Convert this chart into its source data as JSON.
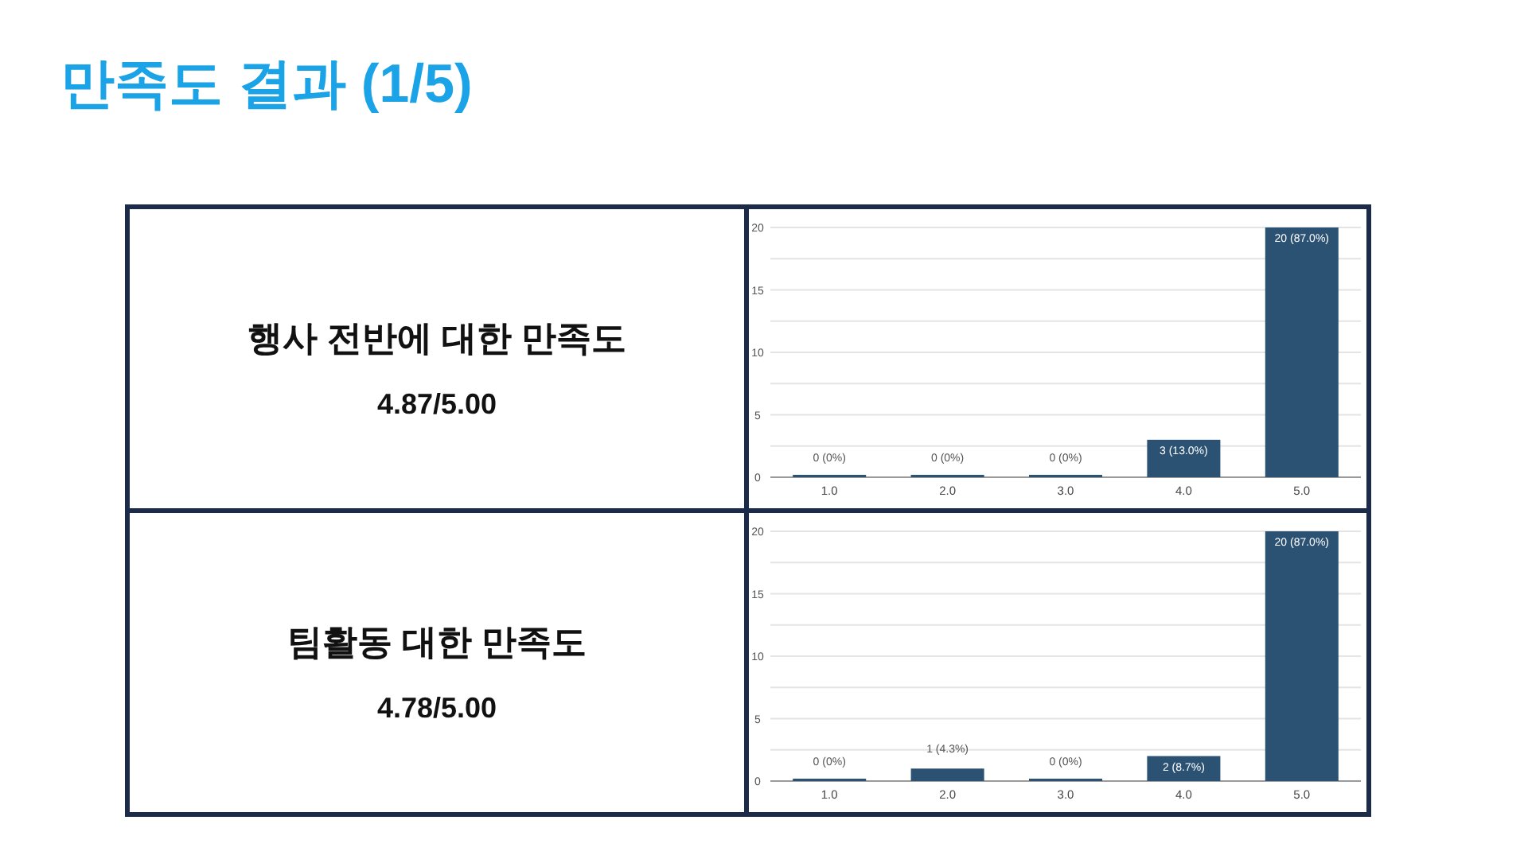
{
  "chart_data": [
    {
      "type": "other",
      "title": "만족도 결과 (1/5)"
    },
    {
      "type": "other",
      "title": "행사 전반에 대한 만족도",
      "subtitle": "4.87/5.00"
    },
    {
      "type": "bar",
      "categories": [
        "1.0",
        "2.0",
        "3.0",
        "4.0",
        "5.0"
      ],
      "values": [
        0,
        0,
        0,
        3,
        20
      ],
      "value_labels": [
        "0 (0%)",
        "0 (0%)",
        "0 (0%)",
        "3 (13.0%)",
        "20 (87.0%)"
      ],
      "color": "#2b5273",
      "ylim": [
        0,
        20
      ],
      "yticks": [
        0,
        {
          "value": 2.5,
          "label": null
        },
        5,
        {
          "value": 7.5,
          "label": null
        },
        10,
        {
          "value": 12.5,
          "label": null
        },
        15,
        {
          "value": 17.5,
          "label": null
        },
        20
      ],
      "grid": "y"
    },
    {
      "type": "other",
      "title": "팀활동 대한 만족도",
      "subtitle": "4.78/5.00"
    },
    {
      "type": "bar",
      "categories": [
        "1.0",
        "2.0",
        "3.0",
        "4.0",
        "5.0"
      ],
      "values": [
        0,
        1,
        0,
        2,
        20
      ],
      "value_labels": [
        "0 (0%)",
        "1 (4.3%)",
        "0 (0%)",
        "2 (8.7%)",
        "20 (87.0%)"
      ],
      "color": "#2b5273",
      "ylim": [
        0,
        20
      ],
      "yticks": [
        0,
        {
          "value": 2.5,
          "label": null
        },
        5,
        {
          "value": 7.5,
          "label": null
        },
        10,
        {
          "value": 12.5,
          "label": null
        },
        15,
        {
          "value": 17.5,
          "label": null
        },
        20
      ],
      "grid": "y"
    }
  ]
}
